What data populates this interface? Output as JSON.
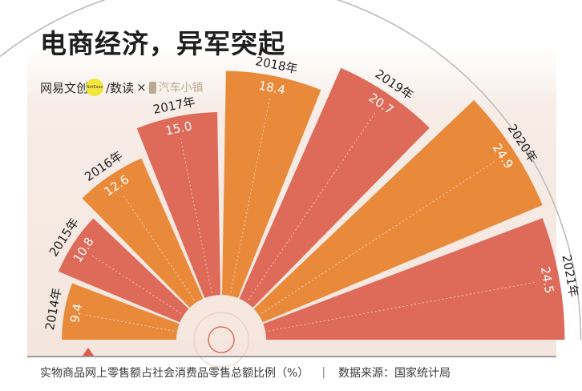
{
  "header": {
    "title": "电商经济，异军突起"
  },
  "brand": {
    "name_a": "网易文创",
    "badge": "NetEase",
    "name_b": "/数读",
    "times": "×",
    "partner": "汽车小镇",
    "partner_color": "#b9a992"
  },
  "footer": {
    "caption": "实物商品网上零售额占社会消费品零售总额比例（%）",
    "separator": "|",
    "source": "数据来源：国家统计局"
  },
  "colors": {
    "orange": "#e98a3b",
    "red": "#de6a5a",
    "frame_line": "#b9b9b9",
    "marker": "#de5a4a"
  },
  "chart_data": {
    "type": "bar",
    "style": "radial fan",
    "title": "电商经济，异军突起",
    "categories": [
      "2014年",
      "2015年",
      "2016年",
      "2017年",
      "2018年",
      "2019年",
      "2020年",
      "2021年"
    ],
    "series": [
      {
        "values": [
          9.4,
          10.8,
          12.6,
          15.0,
          18.4,
          20.7,
          24.9,
          24.5
        ]
      }
    ],
    "value_labels": [
      "9.4",
      "10.8",
      "12.6",
      "15.0",
      "18.4",
      "20.7",
      "24.9",
      "24.5"
    ],
    "ylabel": "实物商品网上零售额占社会消费品零售总额比例（%）",
    "source": "数据来源：国家统计局"
  }
}
